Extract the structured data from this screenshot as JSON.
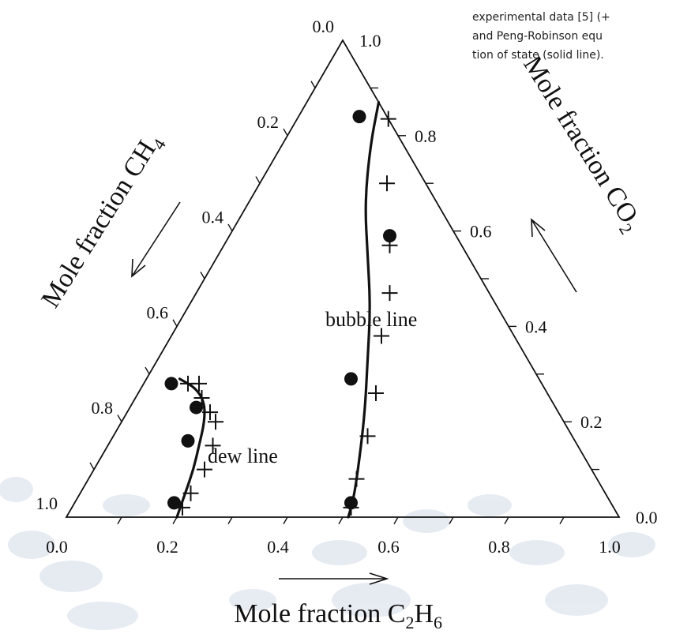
{
  "caption": {
    "lines": [
      "experimental data [5] (+",
      "and Peng-Robinson equ",
      "tion of state (solid line)."
    ]
  },
  "colors": {
    "line": "#111111",
    "marker": "#111111",
    "background_blob": "#c9d3e3"
  },
  "chart_data": {
    "type": "ternary",
    "components": [
      "C2H6",
      "CO2",
      "CH4"
    ],
    "axes": {
      "bottom": {
        "label_prefix": "Mole fraction C",
        "label_sub1": "2",
        "label_mid": "H",
        "label_sub2": "6",
        "ticks": [
          "0.0",
          "0.2",
          "0.4",
          "0.6",
          "0.8",
          "1.0"
        ],
        "range": [
          0,
          1
        ]
      },
      "right": {
        "label_prefix": "Mole fraction CO",
        "label_sub": "2",
        "ticks": [
          "0.0",
          "0.2",
          "0.4",
          "0.6",
          "0.8",
          "1.0"
        ],
        "range": [
          0,
          1
        ]
      },
      "left": {
        "label_prefix": "Mole fraction CH",
        "label_sub": "4",
        "ticks": [
          "0.0",
          "0.2",
          "0.4",
          "0.6",
          "0.8",
          "1.0"
        ],
        "range": [
          0,
          1
        ]
      }
    },
    "annotations": [
      "bubble line",
      "dew line"
    ],
    "series": [
      {
        "marker": "plus",
        "points": [
          {
            "c2h6": 0.165,
            "co2": 0.835
          },
          {
            "c2h6": 0.23,
            "co2": 0.7
          },
          {
            "c2h6": 0.3,
            "co2": 0.57
          },
          {
            "c2h6": 0.35,
            "co2": 0.47
          },
          {
            "c2h6": 0.38,
            "co2": 0.38
          },
          {
            "c2h6": 0.43,
            "co2": 0.26
          },
          {
            "c2h6": 0.46,
            "co2": 0.17
          },
          {
            "c2h6": 0.485,
            "co2": 0.08
          },
          {
            "c2h6": 0.505,
            "co2": 0.02
          },
          {
            "c2h6": 0.08,
            "co2": 0.28
          },
          {
            "c2h6": 0.1,
            "co2": 0.28
          },
          {
            "c2h6": 0.12,
            "co2": 0.25
          },
          {
            "c2h6": 0.15,
            "co2": 0.22
          },
          {
            "c2h6": 0.17,
            "co2": 0.2
          },
          {
            "c2h6": 0.19,
            "co2": 0.15
          },
          {
            "c2h6": 0.2,
            "co2": 0.1
          },
          {
            "c2h6": 0.2,
            "co2": 0.05
          },
          {
            "c2h6": 0.2,
            "co2": 0.02
          }
        ]
      },
      {
        "marker": "circle",
        "points": [
          {
            "c2h6": 0.11,
            "co2": 0.84
          },
          {
            "c2h6": 0.29,
            "co2": 0.59
          },
          {
            "c2h6": 0.37,
            "co2": 0.29
          },
          {
            "c2h6": 0.5,
            "co2": 0.03
          },
          {
            "c2h6": 0.05,
            "co2": 0.28
          },
          {
            "c2h6": 0.12,
            "co2": 0.23
          },
          {
            "c2h6": 0.14,
            "co2": 0.16
          },
          {
            "c2h6": 0.18,
            "co2": 0.03
          }
        ]
      },
      {
        "marker": "line",
        "name": "bubble line",
        "points": [
          {
            "c2h6": 0.13,
            "co2": 0.87
          },
          {
            "c2h6": 0.16,
            "co2": 0.78
          },
          {
            "c2h6": 0.21,
            "co2": 0.66
          },
          {
            "c2h6": 0.27,
            "co2": 0.55
          },
          {
            "c2h6": 0.33,
            "co2": 0.44
          },
          {
            "c2h6": 0.38,
            "co2": 0.33
          },
          {
            "c2h6": 0.43,
            "co2": 0.22
          },
          {
            "c2h6": 0.47,
            "co2": 0.12
          },
          {
            "c2h6": 0.5,
            "co2": 0.04
          },
          {
            "c2h6": 0.51,
            "co2": 0.0
          }
        ]
      },
      {
        "marker": "line",
        "name": "dew line",
        "points": [
          {
            "c2h6": 0.06,
            "co2": 0.29
          },
          {
            "c2h6": 0.1,
            "co2": 0.27
          },
          {
            "c2h6": 0.13,
            "co2": 0.24
          },
          {
            "c2h6": 0.15,
            "co2": 0.2
          },
          {
            "c2h6": 0.165,
            "co2": 0.15
          },
          {
            "c2h6": 0.18,
            "co2": 0.1
          },
          {
            "c2h6": 0.19,
            "co2": 0.05
          },
          {
            "c2h6": 0.2,
            "co2": 0.0
          }
        ]
      }
    ]
  }
}
